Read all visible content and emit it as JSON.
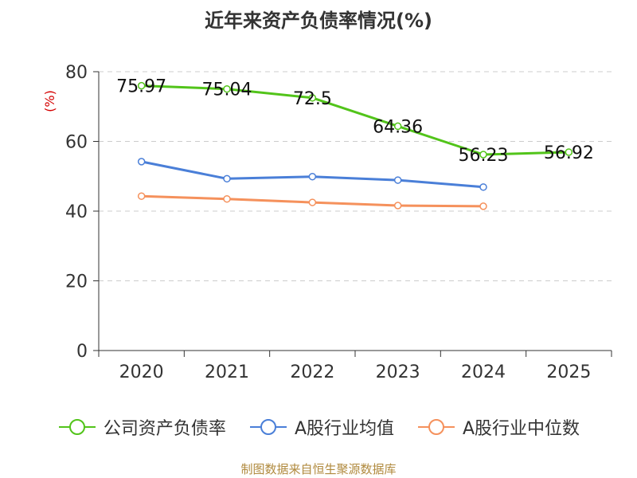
{
  "title": "近年来资产负债率情况(%)",
  "source": "制图数据来自恒生聚源数据库",
  "chart_data": {
    "type": "line",
    "title": "近年来资产负债率情况(%)",
    "ylabel": "(%)",
    "xlabel": "",
    "categories": [
      "2020",
      "2021",
      "2022",
      "2023",
      "2024",
      "2025"
    ],
    "ylim": [
      0,
      80
    ],
    "yticks": [
      0,
      20,
      40,
      60,
      80
    ],
    "grid": true,
    "legend_position": "bottom",
    "series": [
      {
        "name": "公司资产负债率",
        "color": "#52c41a",
        "values": [
          75.97,
          75.04,
          72.5,
          64.36,
          56.23,
          56.92
        ],
        "labels": [
          "75.97",
          "75.04",
          "72.5",
          "64.36",
          "56.23",
          "56.92"
        ],
        "show_labels": true
      },
      {
        "name": "A股行业均值",
        "color": "#4a7fd8",
        "values": [
          54.2,
          49.3,
          49.9,
          48.9,
          46.9,
          null
        ],
        "show_labels": false
      },
      {
        "name": "A股行业中位数",
        "color": "#f5915c",
        "values": [
          44.3,
          43.5,
          42.5,
          41.6,
          41.4,
          null
        ],
        "show_labels": false
      }
    ]
  }
}
